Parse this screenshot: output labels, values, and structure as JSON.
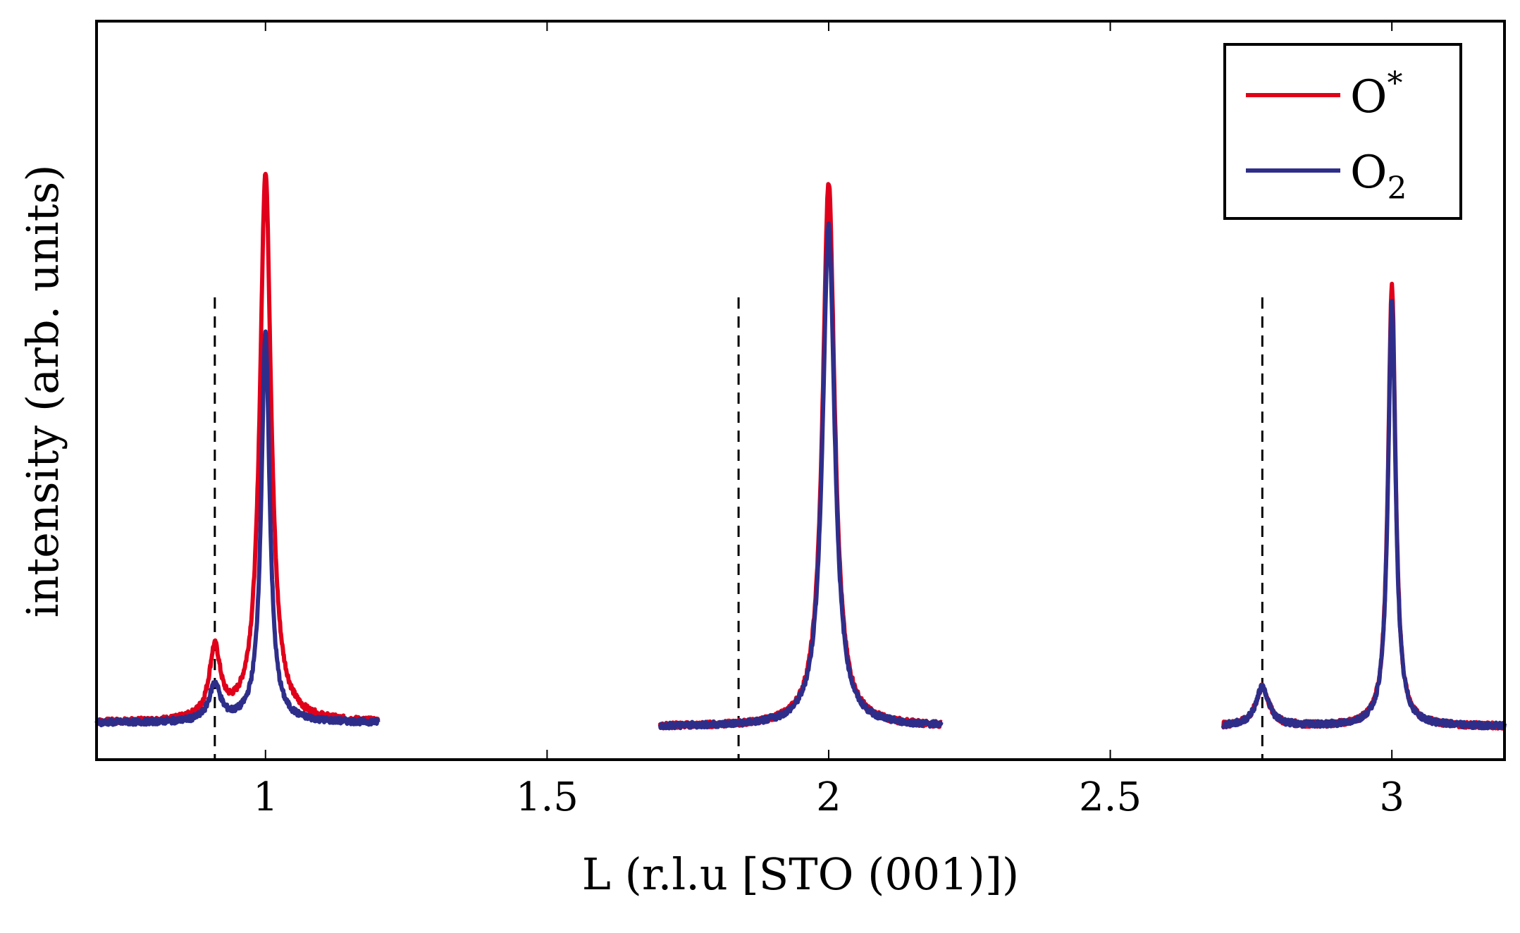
{
  "chart_data": {
    "type": "line",
    "title": "",
    "xlabel": "L (r.l.u [STO (001)])",
    "ylabel": "intensity (arb. units)",
    "xlim": [
      0.7,
      3.2
    ],
    "ylim": [
      0,
      1.0
    ],
    "y_ticks_shown": false,
    "x_ticks": [
      1,
      1.5,
      2,
      2.5,
      3
    ],
    "x_tick_labels": [
      "1",
      "1.5",
      "2",
      "2.5",
      "3"
    ],
    "grid": false,
    "legend": {
      "position": "top-right",
      "entries": [
        {
          "base": "O",
          "script": "*",
          "script_type": "superscript",
          "series": "O*"
        },
        {
          "base": "O",
          "script": "2",
          "script_type": "subscript",
          "series": "O2"
        }
      ]
    },
    "vertical_reference_lines": [
      0.91,
      1.84,
      2.77
    ],
    "segments": [
      {
        "x_range": [
          0.7,
          1.2
        ],
        "peaks": [
          {
            "center": 0.91,
            "O*": 0.12,
            "O2": 0.075,
            "width": 0.012
          },
          {
            "center": 1.0,
            "O*": 0.77,
            "O2": 0.55,
            "width_O*": 0.012,
            "width_O2": 0.009
          }
        ],
        "background": 0.05
      },
      {
        "x_range": [
          1.7,
          2.2
        ],
        "peaks": [
          {
            "center": 2.0,
            "O*": 0.76,
            "O2": 0.7,
            "width": 0.013
          }
        ],
        "background": 0.045
      },
      {
        "x_range": [
          2.7,
          3.2
        ],
        "peaks": [
          {
            "center": 2.77,
            "O*": 0.075,
            "O2": 0.075,
            "width": 0.014
          },
          {
            "center": 3.0,
            "O*": 0.62,
            "O2": 0.6,
            "width": 0.008
          }
        ],
        "background": 0.045
      }
    ],
    "series": [
      {
        "name": "O*",
        "color": "#e0001a"
      },
      {
        "name": "O2",
        "color": "#2e2e8a"
      }
    ]
  }
}
